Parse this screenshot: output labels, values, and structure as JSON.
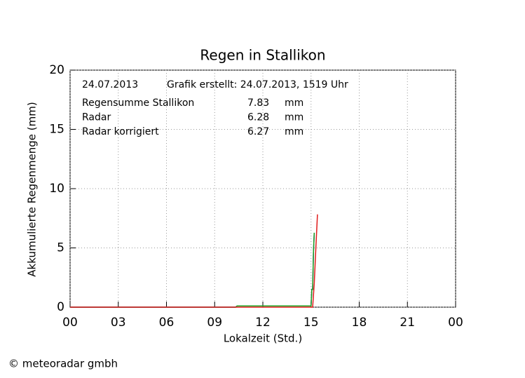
{
  "chart_data": {
    "type": "line",
    "title": "Regen in Stallikon",
    "date": "24.07.2013",
    "created": "Grafik erstellt: 24.07.2013, 1519 Uhr",
    "x_label": "Lokalzeit (Std.)",
    "y_label": "Akkumulierte Regenmenge (mm)",
    "xlim": [
      0,
      24
    ],
    "ylim": [
      0,
      20
    ],
    "xticks": [
      {
        "value": 0,
        "label": "00"
      },
      {
        "value": 3,
        "label": "03"
      },
      {
        "value": 6,
        "label": "06"
      },
      {
        "value": 9,
        "label": "09"
      },
      12,
      15,
      18,
      21,
      {
        "value": 24,
        "label": "00"
      }
    ],
    "yticks": [
      0,
      5,
      10,
      15,
      20
    ],
    "grid": true,
    "series": [
      {
        "name": "Radar korrigiert",
        "color": "#1c1cd0",
        "total": 6.27,
        "unit": "mm",
        "x": [
          0,
          10.3,
          10.4,
          15.0,
          15.05,
          15.1,
          15.15,
          15.2
        ],
        "values": [
          0,
          0,
          0.1,
          0.1,
          1.5,
          1.5,
          4.6,
          6.27
        ]
      },
      {
        "name": "Radar",
        "color": "#1fa01f",
        "total": 6.28,
        "unit": "mm",
        "x": [
          0,
          10.3,
          10.4,
          15.0,
          15.05,
          15.1,
          15.15,
          15.2
        ],
        "values": [
          0,
          0,
          0.1,
          0.1,
          1.5,
          1.5,
          4.6,
          6.28
        ]
      },
      {
        "name": "Regensumme Stallikon",
        "color": "#e01c1c",
        "total": 7.83,
        "unit": "mm",
        "x": [
          0,
          15.1,
          15.2,
          15.3,
          15.4
        ],
        "values": [
          0,
          0,
          2,
          5,
          7.83
        ]
      }
    ],
    "footer": "© meteoradar gmbh"
  }
}
